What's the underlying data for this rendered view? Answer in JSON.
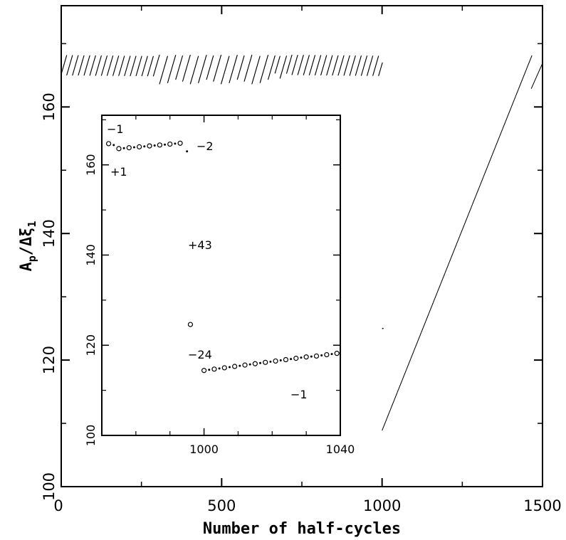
{
  "chart_data": [
    {
      "type": "scatter",
      "xlabel": "Number of half-cycles",
      "ylabel": "A_p/Δξ_1",
      "ylabel_main": "A",
      "ylabel_sub": "p",
      "ylabel_tail": "/Δξ",
      "ylabel_tail_sub": "1",
      "xlim": [
        0,
        1500
      ],
      "ylim": [
        100,
        176
      ],
      "x_ticks": [
        0,
        500,
        1000,
        1500
      ],
      "y_ticks": [
        100,
        120,
        140,
        160
      ],
      "x_tick_labels": [
        "0",
        "500",
        "1000",
        "1500"
      ],
      "y_tick_labels": [
        "100",
        "120",
        "140",
        "160"
      ],
      "series": [
        {
          "x_range": [
            0,
            1000
          ],
          "y_band": [
            163.5,
            168
          ],
          "pattern": "sawtooth",
          "step_increment": 0.35,
          "drop": 4
        },
        {
          "x_range": [
            1000,
            1500
          ],
          "y_start": 109,
          "y_end": 168,
          "pattern": "linear-ramp"
        },
        {
          "x_range": [
            1465,
            1500
          ],
          "y_start": 163,
          "y_end": 167,
          "pattern": "linear-ramp"
        }
      ]
    },
    {
      "type": "scatter",
      "xlim": [
        970,
        1040
      ],
      "ylim": [
        100,
        171
      ],
      "x_ticks": [
        1000,
        1040
      ],
      "y_ticks": [
        100,
        120,
        140,
        160
      ],
      "x_tick_labels": [
        "1000",
        "1040"
      ],
      "y_tick_labels": [
        "100",
        "120",
        "140",
        "160"
      ],
      "open_circles": [
        [
          972,
          164.7
        ],
        [
          975,
          163.6
        ],
        [
          978,
          163.8
        ],
        [
          981,
          164.0
        ],
        [
          984,
          164.2
        ],
        [
          987,
          164.4
        ],
        [
          990,
          164.6
        ],
        [
          993,
          164.8
        ],
        [
          996,
          124.6
        ],
        [
          1000,
          114.4
        ],
        [
          1003,
          114.7
        ],
        [
          1006,
          115.0
        ],
        [
          1009,
          115.3
        ],
        [
          1012,
          115.6
        ],
        [
          1015,
          115.9
        ],
        [
          1018,
          116.2
        ],
        [
          1021,
          116.5
        ],
        [
          1024,
          116.8
        ],
        [
          1027,
          117.1
        ],
        [
          1030,
          117.4
        ],
        [
          1033,
          117.6
        ],
        [
          1036,
          117.9
        ],
        [
          1039,
          118.2
        ]
      ],
      "dots": [
        [
          973.5,
          164.4
        ],
        [
          976.5,
          163.7
        ],
        [
          979.5,
          163.9
        ],
        [
          982.5,
          164.1
        ],
        [
          985.5,
          164.3
        ],
        [
          988.5,
          164.5
        ],
        [
          991.5,
          164.7
        ],
        [
          995,
          163.0
        ],
        [
          1001.5,
          114.55
        ],
        [
          1004.5,
          114.85
        ],
        [
          1007.5,
          115.15
        ],
        [
          1010.5,
          115.45
        ],
        [
          1013.5,
          115.75
        ],
        [
          1016.5,
          116.05
        ],
        [
          1019.5,
          116.35
        ],
        [
          1022.5,
          116.65
        ],
        [
          1025.5,
          116.95
        ],
        [
          1028.5,
          117.25
        ],
        [
          1031.5,
          117.5
        ],
        [
          1034.5,
          117.75
        ],
        [
          1037.5,
          118.05
        ]
      ],
      "annotations": [
        "−1",
        "+1",
        "−2",
        "+43",
        "−24",
        "−1"
      ]
    }
  ]
}
